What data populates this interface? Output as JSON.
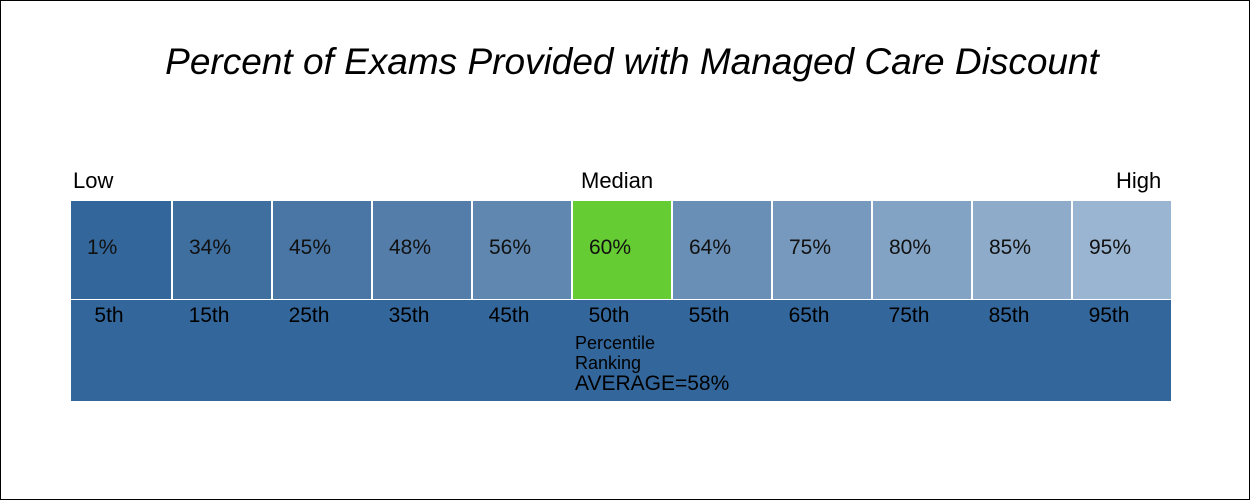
{
  "chart_data": {
    "type": "table",
    "title": "Percent of Exams Provided with Managed Care Discount",
    "scale_labels": {
      "low": "Low",
      "median": "Median",
      "high": "High"
    },
    "percentiles": [
      "5th",
      "15th",
      "25th",
      "35th",
      "45th",
      "50th",
      "55th",
      "65th",
      "75th",
      "85th",
      "95th"
    ],
    "values": [
      "1%",
      "34%",
      "45%",
      "48%",
      "56%",
      "60%",
      "64%",
      "75%",
      "80%",
      "85%",
      "95%"
    ],
    "highlight_index": 5,
    "band_label_line1": "Percentile",
    "band_label_line2": "Ranking",
    "average_label": "AVERAGE=58%"
  },
  "colors": {
    "cells": [
      "#33669a",
      "#3e6f9f",
      "#4976a4",
      "#547ea9",
      "#5f87b0",
      "#66cc33",
      "#6a8fb6",
      "#7799bd",
      "#83a3c4",
      "#8eabc9",
      "#9ab5d1"
    ],
    "band": "#33669a",
    "highlight": "#66cc33"
  }
}
